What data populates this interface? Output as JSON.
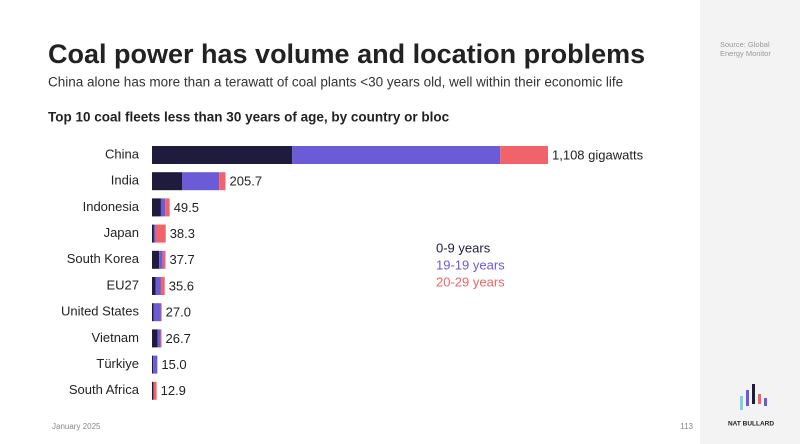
{
  "header": {
    "title": "Coal power has volume and location problems",
    "subtitle": "China alone has more than a terawatt of coal plants <30 years old, well within their economic life"
  },
  "sidebar": {
    "source": "Source: Global Energy Monitor",
    "brand": "NAT BULLARD"
  },
  "footer": {
    "date": "January 2025",
    "page": "113"
  },
  "chart_data": {
    "type": "stacked-barh",
    "title": "Top 10 coal fleets less than 30 years of age, by country or bloc",
    "categories": [
      "China",
      "India",
      "Indonesia",
      "Japan",
      "South Korea",
      "EU27",
      "United States",
      "Vietnam",
      "Türkiye",
      "South Africa"
    ],
    "series": [
      {
        "name": "0-9 years",
        "color": "#1f1b3d",
        "values": [
          392,
          84,
          25,
          5.3,
          20,
          10,
          5,
          16,
          3,
          4
        ]
      },
      {
        "name": "19-19 years",
        "color": "#6b5bd6",
        "values": [
          582,
          104,
          12,
          5,
          10,
          15,
          20,
          8,
          12,
          0
        ]
      },
      {
        "name": "20-29 years",
        "color": "#f0636b",
        "values": [
          134,
          17.7,
          12.5,
          28,
          7.7,
          10.6,
          2,
          2.7,
          0,
          8.9
        ]
      }
    ],
    "totals": {
      "values": [
        1108,
        205.7,
        49.5,
        38.3,
        37.7,
        35.6,
        27.0,
        26.7,
        15.0,
        12.9
      ],
      "value_labels": [
        "1,108 gigawatts",
        "205.7",
        "49.5",
        "38.3",
        "37.7",
        "35.6",
        "27.0",
        "26.7",
        "15.0",
        "12.9"
      ]
    }
  }
}
